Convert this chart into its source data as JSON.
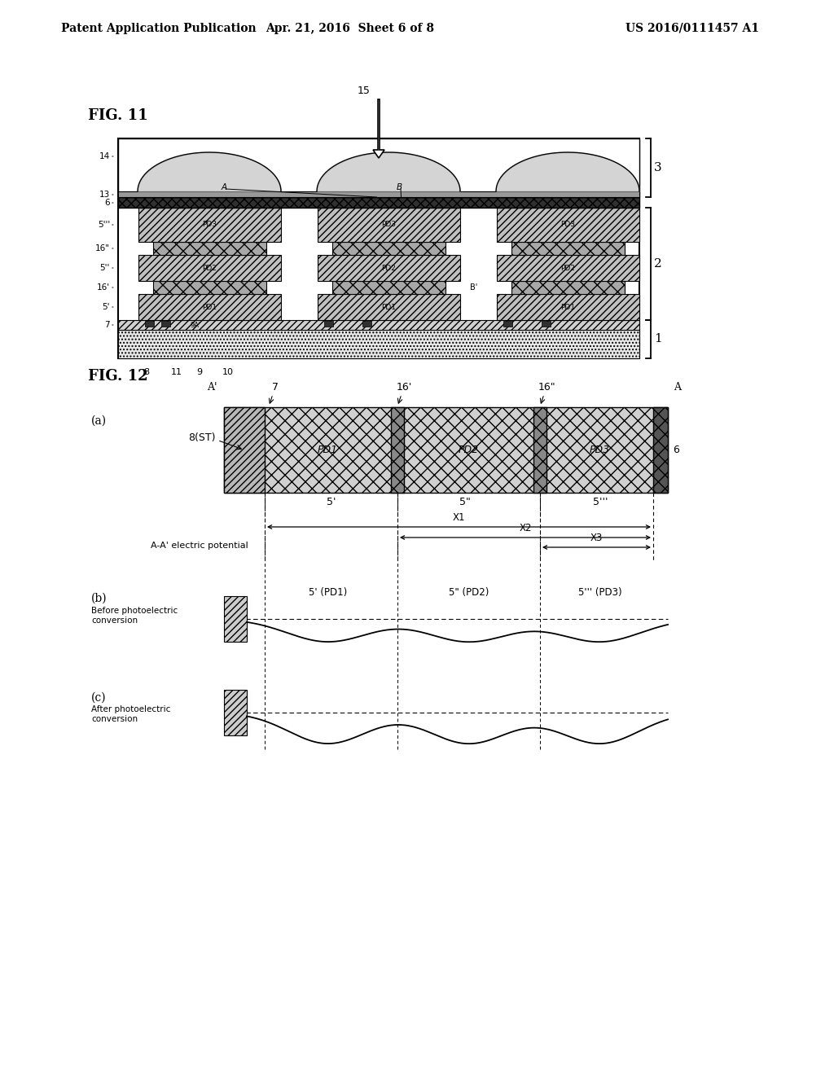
{
  "bg_color": "#ffffff",
  "header_left": "Patent Application Publication",
  "header_center": "Apr. 21, 2016  Sheet 6 of 8",
  "header_right": "US 2016/0111457 A1",
  "fig11_label": "FIG. 11",
  "fig12_label": "FIG. 12"
}
